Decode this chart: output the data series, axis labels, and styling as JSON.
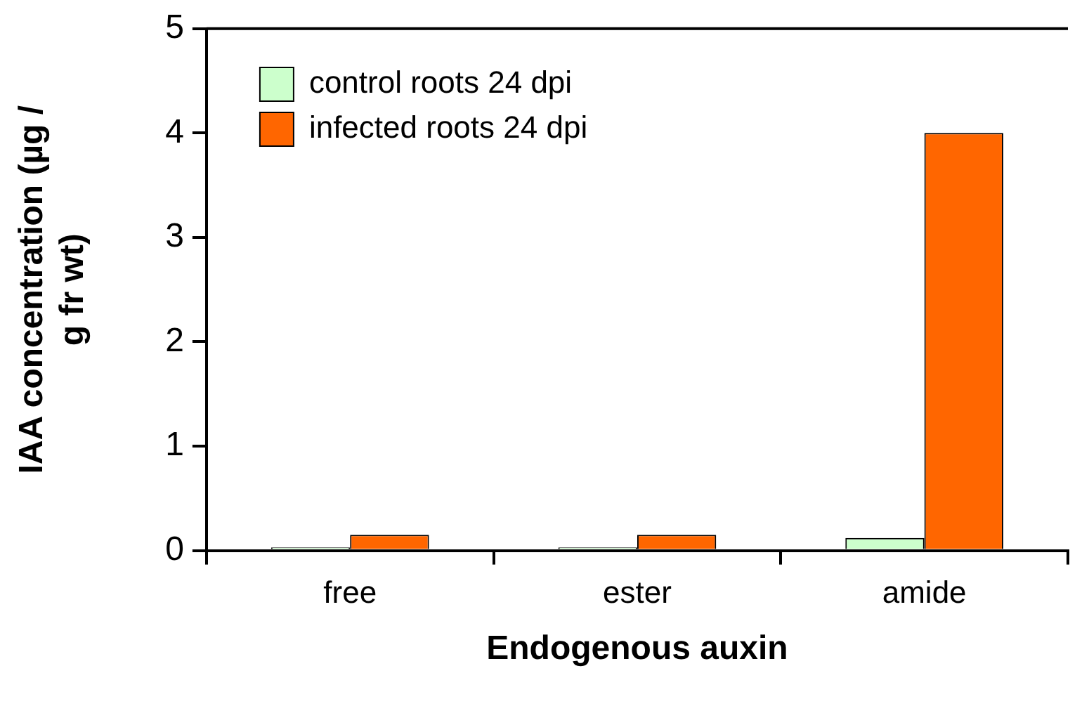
{
  "chart_data": {
    "type": "bar",
    "xlabel": "Endogenous auxin",
    "ylabel": "IAA concentration (µg /\ng fr wt)",
    "categories": [
      "free",
      "ester",
      "amide"
    ],
    "series": [
      {
        "name": "control roots 24 dpi",
        "color": "#ccffcc",
        "values": [
          0.03,
          0.03,
          0.12
        ]
      },
      {
        "name": "infected roots 24 dpi",
        "color": "#ff6600",
        "values": [
          0.15,
          0.15,
          4.0
        ]
      }
    ],
    "ylim": [
      0,
      5
    ],
    "yticks": [
      0,
      1,
      2,
      3,
      4,
      5
    ],
    "grid": false,
    "legend": "top left"
  }
}
